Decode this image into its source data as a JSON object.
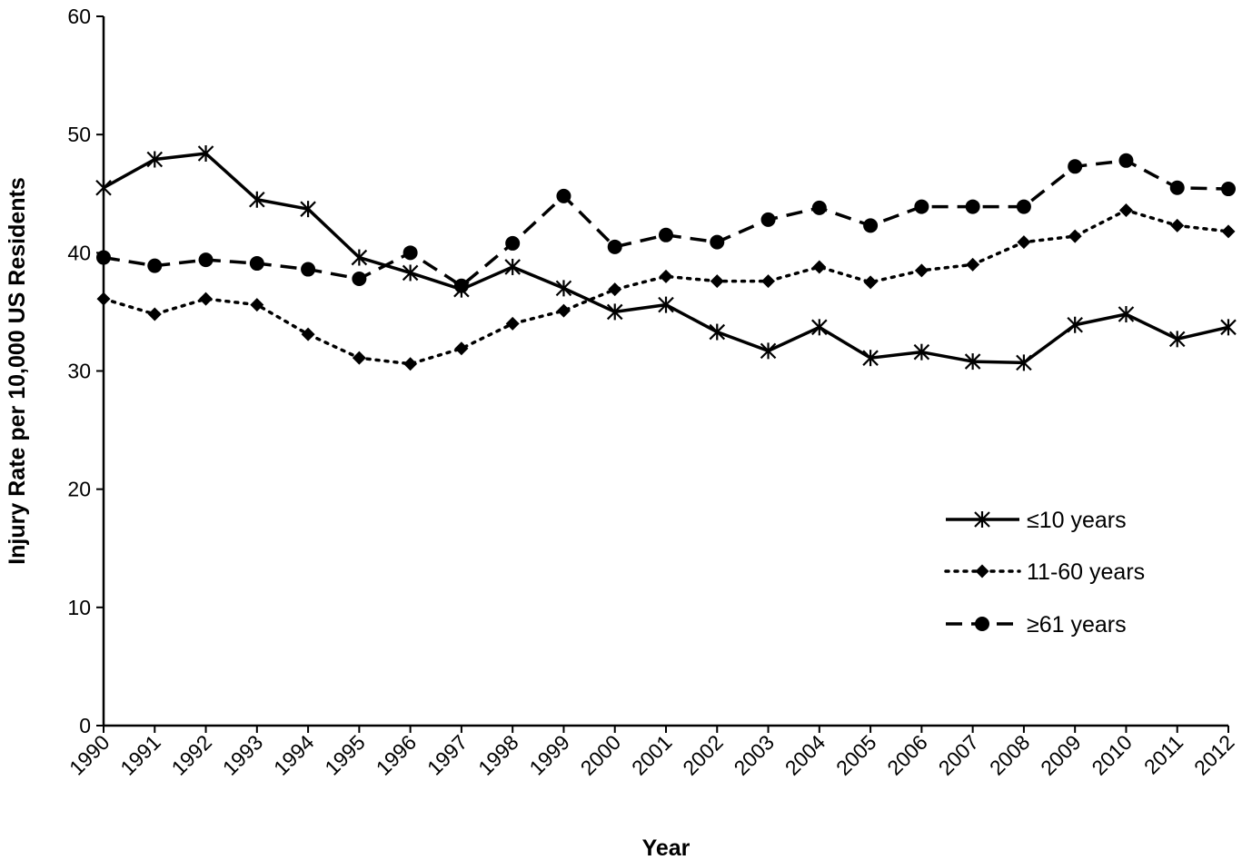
{
  "chart_data": {
    "type": "line",
    "xlabel": "Year",
    "ylabel": "Injury Rate per 10,000 US Residents",
    "ylim": [
      0,
      60
    ],
    "yticks": [
      0,
      10,
      20,
      30,
      40,
      50,
      60
    ],
    "x": [
      "1990",
      "1991",
      "1992",
      "1993",
      "1994",
      "1995",
      "1996",
      "1997",
      "1998",
      "1999",
      "2000",
      "2001",
      "2002",
      "2003",
      "2004",
      "2005",
      "2006",
      "2007",
      "2008",
      "2009",
      "2010",
      "2011",
      "2012"
    ],
    "series": [
      {
        "name": "≤10 years",
        "marker": "asterisk",
        "line": "solid",
        "values": [
          45.5,
          47.9,
          48.4,
          44.5,
          43.7,
          39.6,
          38.3,
          36.9,
          38.8,
          37.0,
          35.0,
          35.6,
          33.3,
          31.7,
          33.7,
          31.1,
          31.6,
          30.8,
          30.7,
          33.9,
          34.8,
          32.7,
          33.7
        ]
      },
      {
        "name": "11-60 years",
        "marker": "diamond",
        "line": "dotted",
        "values": [
          36.1,
          34.8,
          36.1,
          35.6,
          33.1,
          31.1,
          30.6,
          31.9,
          34.0,
          35.1,
          36.9,
          38.0,
          37.6,
          37.6,
          38.8,
          37.5,
          38.5,
          39.0,
          40.9,
          41.4,
          43.6,
          42.3,
          41.8
        ]
      },
      {
        "name": "≥61 years",
        "marker": "circle",
        "line": "dashed",
        "values": [
          39.6,
          38.9,
          39.4,
          39.1,
          38.6,
          37.8,
          40.0,
          37.2,
          40.8,
          44.8,
          40.5,
          41.5,
          40.9,
          42.8,
          43.8,
          42.3,
          43.9,
          43.9,
          43.9,
          47.3,
          47.8,
          45.5,
          45.4
        ]
      }
    ],
    "legend": "right-middle",
    "grid": false
  }
}
